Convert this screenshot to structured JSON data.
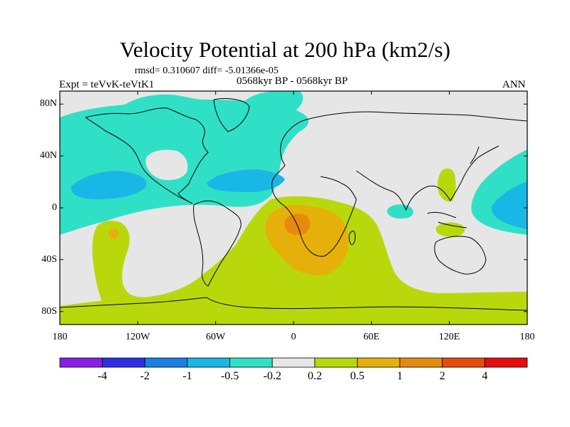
{
  "figure": {
    "title": "Velocity Potential at 200 hPa (km2/s)",
    "stats": "rmsd= 0.310607 diff= -5.01366e-05",
    "left_label": "Expt = teVvK-teVtK1",
    "center_label": "0568kyr BP - 0568kyr BP",
    "right_label": "ANN"
  },
  "axes": {
    "lat_labels": [
      "80N",
      "40N",
      "0",
      "40S",
      "80S"
    ],
    "lon_labels": [
      "180",
      "120W",
      "60W",
      "0",
      "60E",
      "120E",
      "180"
    ]
  },
  "colorbar": {
    "labels": [
      "-4",
      "-2",
      "-1",
      "-0.5",
      "-0.2",
      "0.2",
      "0.5",
      "1",
      "2",
      "4"
    ],
    "colors": [
      "#8a1ee8",
      "#2e2ee6",
      "#1a7fe6",
      "#19b7e6",
      "#30e0c6",
      "#e6e6e6",
      "#b9d80c",
      "#e6b00a",
      "#e68a0f",
      "#e64d0a",
      "#e60d0d"
    ]
  },
  "map": {
    "projection": "cylindrical-equidistant",
    "lon_range": [
      -180,
      180
    ],
    "lat_range": [
      -90,
      90
    ],
    "field_colors": {
      "background": "#e6e6e6",
      "positive_low": "#b9d80c",
      "positive_mid": "#e6b00a",
      "positive_high": "#e68a0f",
      "negative_low": "#30e0c6",
      "negative_mid": "#19b7e6",
      "coast": "#000000"
    }
  }
}
